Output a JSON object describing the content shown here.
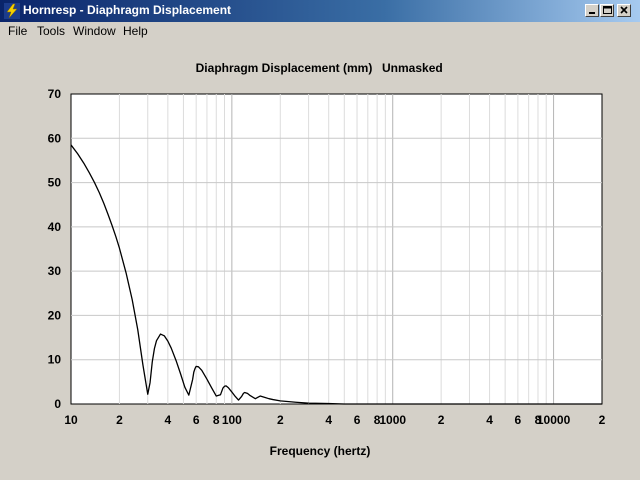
{
  "window": {
    "title": "Hornresp - Diaphragm Displacement",
    "controls": {
      "minimize": "minimize",
      "maximize": "maximize",
      "close": "close"
    }
  },
  "menu": {
    "file": "File",
    "tools": "Tools",
    "window": "Window",
    "help": "Help"
  },
  "colors": {
    "title_start": "#0a246a",
    "title_end": "#a6caf0",
    "plot_bg": "#ffffff",
    "grid": "#c8c8c8",
    "face": "#d4d0c8"
  },
  "chart_data": {
    "type": "line",
    "title": "Diaphragm Displacement (mm)",
    "subtitle": "Unmasked",
    "xlabel": "Frequency (hertz)",
    "ylabel": "",
    "x_scale": "log",
    "xlim": [
      10,
      20000
    ],
    "ylim": [
      0,
      70
    ],
    "grid": true,
    "y_ticks": [
      0,
      10,
      20,
      30,
      40,
      50,
      60,
      70
    ],
    "x_tick_labels": [
      {
        "x": 10,
        "label": "10"
      },
      {
        "x": 20,
        "label": "2"
      },
      {
        "x": 40,
        "label": "4"
      },
      {
        "x": 60,
        "label": "6"
      },
      {
        "x": 80,
        "label": "8"
      },
      {
        "x": 100,
        "label": "100"
      },
      {
        "x": 200,
        "label": "2"
      },
      {
        "x": 400,
        "label": "4"
      },
      {
        "x": 600,
        "label": "6"
      },
      {
        "x": 800,
        "label": "8"
      },
      {
        "x": 1000,
        "label": "1000"
      },
      {
        "x": 2000,
        "label": "2"
      },
      {
        "x": 4000,
        "label": "4"
      },
      {
        "x": 6000,
        "label": "6"
      },
      {
        "x": 8000,
        "label": "8"
      },
      {
        "x": 10000,
        "label": "10000"
      },
      {
        "x": 20000,
        "label": "2"
      }
    ],
    "series": [
      {
        "x": [
          10,
          11,
          12,
          13,
          14,
          15,
          16,
          17,
          18,
          19,
          20,
          22,
          24,
          26,
          28,
          30,
          31,
          32,
          33,
          34,
          36,
          38,
          40,
          42,
          45,
          48,
          51,
          54,
          57,
          58,
          59,
          60,
          62,
          65,
          70,
          75,
          80,
          85,
          88,
          90,
          92,
          95,
          100,
          105,
          110,
          115,
          118,
          120,
          125,
          130,
          140,
          145,
          150,
          160,
          170,
          180,
          200,
          250,
          300,
          400,
          500,
          700,
          1000,
          2000,
          5000,
          10000,
          20000
        ],
        "y": [
          58.5,
          56.5,
          54.4,
          52.2,
          50.0,
          47.7,
          45.3,
          42.8,
          40.3,
          37.8,
          35.2,
          29.6,
          23.6,
          16.8,
          8.8,
          2.2,
          4.8,
          9.5,
          12.5,
          14.3,
          15.8,
          15.4,
          14.2,
          12.6,
          9.8,
          6.8,
          3.8,
          2.0,
          5.5,
          7.2,
          8.0,
          8.5,
          8.4,
          7.6,
          5.6,
          3.6,
          1.8,
          2.1,
          3.6,
          4.0,
          4.1,
          3.7,
          2.7,
          1.7,
          0.9,
          1.7,
          2.4,
          2.6,
          2.4,
          1.9,
          1.2,
          1.5,
          1.8,
          1.5,
          1.2,
          1.0,
          0.7,
          0.4,
          0.2,
          0.1,
          0.0,
          0.0,
          0.0,
          0.0,
          0.0,
          0.0,
          0.0
        ]
      }
    ]
  }
}
